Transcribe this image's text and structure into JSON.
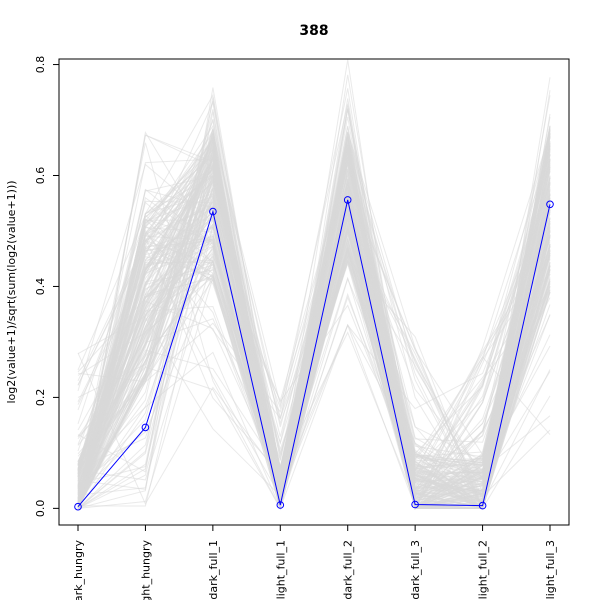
{
  "chart_data": {
    "type": "line",
    "title": "388",
    "xlabel": "",
    "ylabel": "log2(value+1)/sqrt(sum(log2(value+1)))",
    "categories": [
      "dark_hungry",
      "light_hungry",
      "dark_full_1",
      "light_full_1",
      "dark_full_2",
      "dark_full_3",
      "light_full_2",
      "light_full_3"
    ],
    "category_labels_visible": [
      "ark_hungry",
      "ght_hungry",
      "dark_full_1",
      "light_full_1",
      "dark_full_2",
      "dark_full_3",
      "light_full_2",
      "light_full_3"
    ],
    "ylim": [
      -0.03,
      0.81
    ],
    "yticks": [
      0.0,
      0.2,
      0.4,
      0.6,
      0.8
    ],
    "ytick_labels": [
      "0.0",
      "0.2",
      "0.4",
      "0.6",
      "0.8"
    ],
    "series": [
      {
        "role": "highlight",
        "values": [
          0.003,
          0.146,
          0.535,
          0.006,
          0.556,
          0.007,
          0.005,
          0.548
        ]
      }
    ],
    "background_profiles": {
      "count": 220,
      "ranges": [
        [
          0.0,
          0.29
        ],
        [
          0.0,
          0.68
        ],
        [
          0.14,
          0.77
        ],
        [
          0.0,
          0.2
        ],
        [
          0.3,
          0.83
        ],
        [
          0.0,
          0.31
        ],
        [
          0.0,
          0.3
        ],
        [
          0.13,
          0.8
        ]
      ],
      "typical": [
        0.02,
        0.38,
        0.55,
        0.03,
        0.56,
        0.03,
        0.03,
        0.54
      ]
    },
    "grid": false,
    "legend": "none",
    "colors": {
      "highlight": "#0000ff",
      "background": "#d9d9d9",
      "axis": "#000000"
    }
  }
}
